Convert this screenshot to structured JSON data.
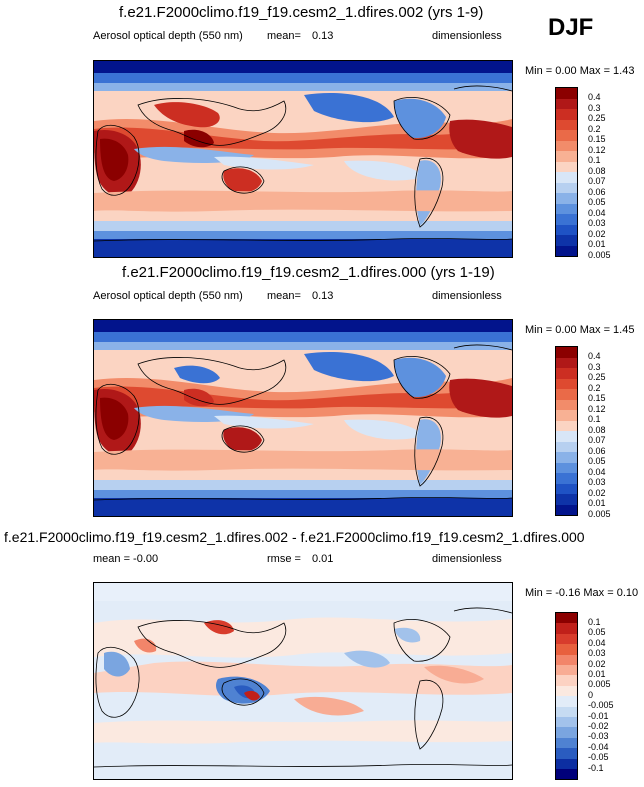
{
  "season_label": "DJF",
  "panels": [
    {
      "title": "f.e21.F2000climo.f19_f19.cesm2_1.dfires.002 (yrs 1-9)",
      "left_label": "Aerosol optical depth (550 nm)",
      "stat_label": "mean=",
      "stat_value": "0.13",
      "units": "dimensionless",
      "range_text": "Min =   0.00 Max =   1.43",
      "colorbar_labels": [
        "0.4",
        "0.3",
        "0.25",
        "0.2",
        "0.15",
        "0.12",
        "0.1",
        "0.08",
        "0.07",
        "0.06",
        "0.05",
        "0.04",
        "0.03",
        "0.02",
        "0.01",
        "0.005"
      ]
    },
    {
      "title": "f.e21.F2000climo.f19_f19.cesm2_1.dfires.000 (yrs 1-19)",
      "left_label": "Aerosol optical depth (550 nm)",
      "stat_label": "mean=",
      "stat_value": "0.13",
      "units": "dimensionless",
      "range_text": "Min =   0.00 Max =   1.45",
      "colorbar_labels": [
        "0.4",
        "0.3",
        "0.25",
        "0.2",
        "0.15",
        "0.12",
        "0.1",
        "0.08",
        "0.07",
        "0.06",
        "0.05",
        "0.04",
        "0.03",
        "0.02",
        "0.01",
        "0.005"
      ]
    },
    {
      "title": "f.e21.F2000climo.f19_f19.cesm2_1.dfires.002 - f.e21.F2000climo.f19_f19.cesm2_1.dfires.000",
      "left_label": "mean =  -0.00",
      "stat_label": "rmse =",
      "stat_value": "0.01",
      "units": "dimensionless",
      "range_text": "Min =  -0.16 Max =   0.10",
      "colorbar_labels": [
        "0.1",
        "0.05",
        "0.04",
        "0.03",
        "0.02",
        "0.01",
        "0.005",
        "0",
        "-0.005",
        "-0.01",
        "-0.02",
        "-0.03",
        "-0.04",
        "-0.05",
        "-0.1"
      ]
    }
  ],
  "colors": {
    "abs_scale": [
      "#8b0000",
      "#b01818",
      "#cc2e22",
      "#de4a30",
      "#ea6a48",
      "#f28c6a",
      "#f8b194",
      "#fbd4c2",
      "#d8e6f7",
      "#b7d0f0",
      "#8ab2e8",
      "#5d91de",
      "#3a72d4",
      "#1f52c4",
      "#0e33a8",
      "#02148c",
      "#00007a"
    ],
    "diff_scale": [
      "#8b0000",
      "#c0201a",
      "#d83c2c",
      "#e8603e",
      "#f2856a",
      "#f8ac94",
      "#fcd2c2",
      "#fbe9e0",
      "#e2ecf8",
      "#c6dbf2",
      "#a2c2eb",
      "#7aa5e0",
      "#4f82d2",
      "#2a5cc0",
      "#0c2ea2",
      "#00007a"
    ]
  },
  "chart_data": [
    {
      "type": "heatmap",
      "title": "f.e21.F2000climo.f19_f19.cesm2_1.dfires.002 (yrs 1-9)",
      "variable": "Aerosol optical depth (550 nm)",
      "units": "dimensionless",
      "mean": 0.13,
      "min": 0.0,
      "max": 1.43,
      "levels": [
        0.005,
        0.01,
        0.02,
        0.03,
        0.04,
        0.05,
        0.06,
        0.07,
        0.08,
        0.1,
        0.12,
        0.15,
        0.2,
        0.25,
        0.3,
        0.4
      ]
    },
    {
      "type": "heatmap",
      "title": "f.e21.F2000climo.f19_f19.cesm2_1.dfires.000 (yrs 1-19)",
      "variable": "Aerosol optical depth (550 nm)",
      "units": "dimensionless",
      "mean": 0.13,
      "min": 0.0,
      "max": 1.45,
      "levels": [
        0.005,
        0.01,
        0.02,
        0.03,
        0.04,
        0.05,
        0.06,
        0.07,
        0.08,
        0.1,
        0.12,
        0.15,
        0.2,
        0.25,
        0.3,
        0.4
      ]
    },
    {
      "type": "heatmap",
      "title": "f.e21.F2000climo.f19_f19.cesm2_1.dfires.002 - f.e21.F2000climo.f19_f19.cesm2_1.dfires.000",
      "units": "dimensionless",
      "mean": -0.0,
      "rmse": 0.01,
      "min": -0.16,
      "max": 0.1,
      "levels": [
        -0.1,
        -0.05,
        -0.04,
        -0.03,
        -0.02,
        -0.01,
        -0.005,
        0,
        0.005,
        0.01,
        0.02,
        0.03,
        0.04,
        0.05,
        0.1
      ]
    }
  ]
}
